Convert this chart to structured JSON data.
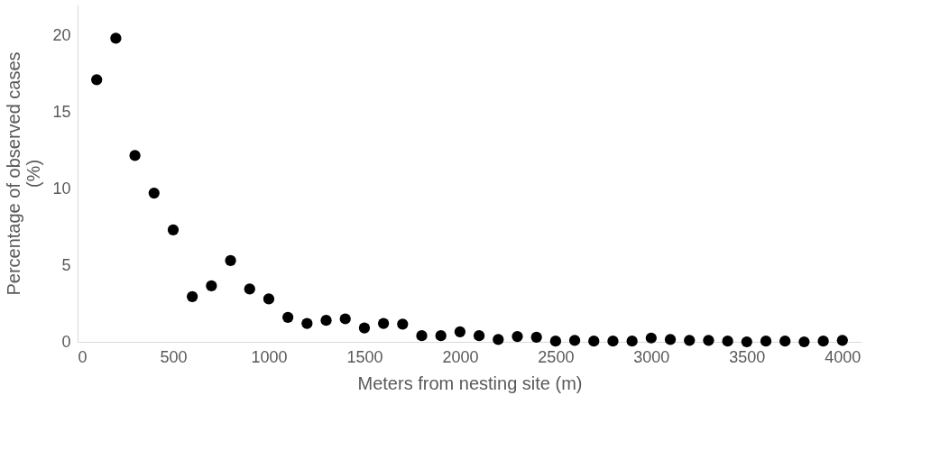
{
  "chart_data": {
    "type": "scatter",
    "xlabel": "Meters from nesting site (m)",
    "ylabel": "Percentage of observed cases\n(%)",
    "x": [
      100,
      200,
      300,
      400,
      500,
      600,
      700,
      800,
      900,
      1000,
      1100,
      1200,
      1300,
      1400,
      1500,
      1600,
      1700,
      1800,
      1900,
      2000,
      2100,
      2200,
      2300,
      2400,
      2500,
      2600,
      2700,
      2800,
      2900,
      3000,
      3100,
      3200,
      3300,
      3400,
      3500,
      3600,
      3700,
      3800,
      3900,
      4000
    ],
    "series": [
      {
        "color": "#000000",
        "values": [
          17.1,
          19.8,
          12.15,
          9.7,
          7.3,
          2.95,
          3.65,
          5.3,
          3.45,
          2.8,
          1.6,
          1.2,
          1.4,
          1.5,
          0.9,
          1.2,
          1.15,
          0.4,
          0.4,
          0.65,
          0.4,
          0.15,
          0.35,
          0.3,
          0.05,
          0.1,
          0.05,
          0.05,
          0.05,
          0.25,
          0.15,
          0.1,
          0.1,
          0.05,
          0,
          0.05,
          0.05,
          0,
          0.05,
          0.1
        ]
      }
    ],
    "xlim": [
      0,
      4100
    ],
    "xticks": [
      0,
      500,
      1000,
      1500,
      2000,
      2500,
      3000,
      3500,
      4000
    ],
    "ylim": [
      0,
      22
    ],
    "yticks": [
      0,
      5,
      10,
      15,
      20
    ],
    "marker": "circle",
    "grid": false
  }
}
